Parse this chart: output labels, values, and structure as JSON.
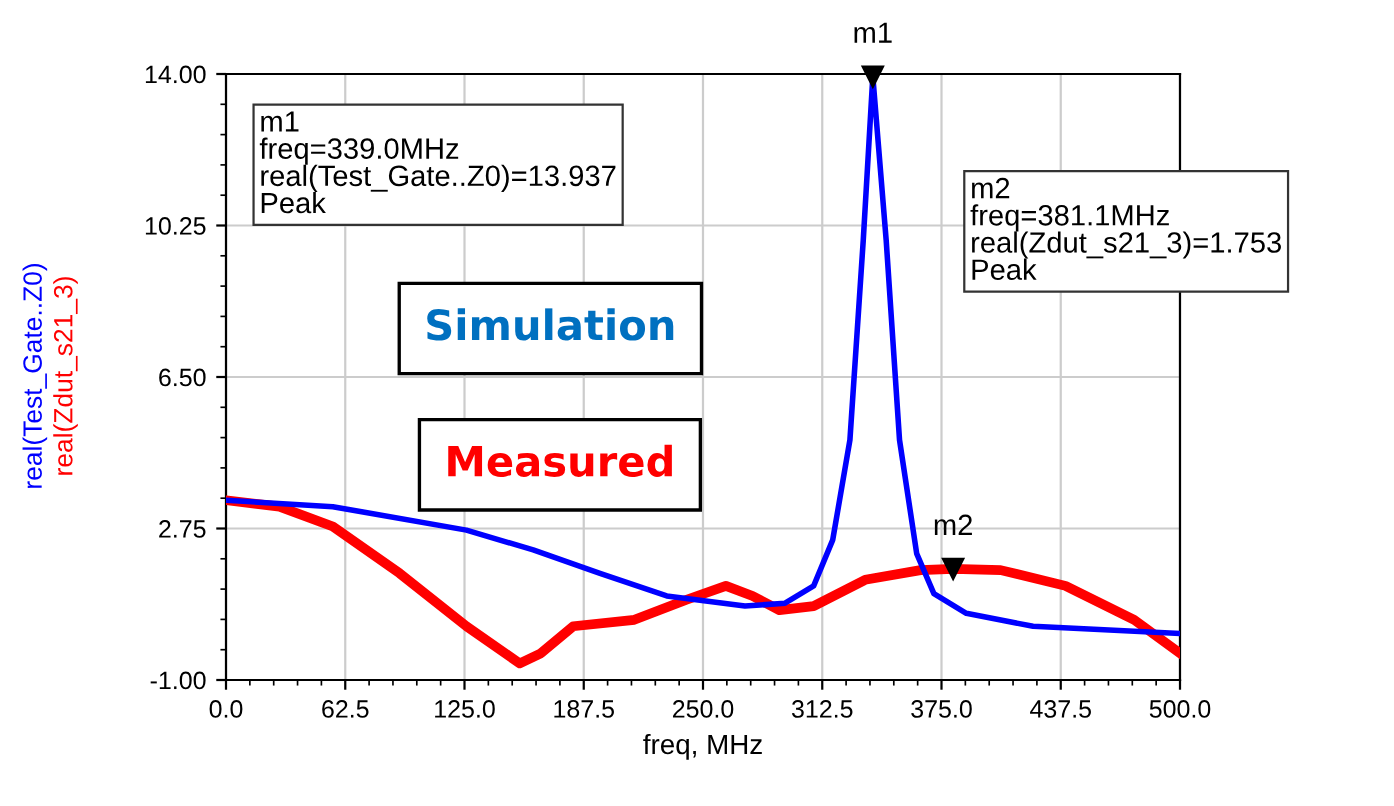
{
  "chart_data": {
    "type": "line",
    "xlabel": "freq, MHz",
    "ylabel": [
      "real(Test_Gate..Z0)",
      "real(Zdut_s21_3)"
    ],
    "xlim": [
      0,
      500
    ],
    "xticks": [
      {
        "value": 0,
        "label": "0.0"
      },
      {
        "value": 62.5,
        "label": "62.5"
      },
      {
        "value": 125,
        "label": "125.0"
      },
      {
        "value": 187.5,
        "label": "187.5"
      },
      {
        "value": 250,
        "label": "250.0"
      },
      {
        "value": 312.5,
        "label": "312.5"
      },
      {
        "value": 375,
        "label": "375.0"
      },
      {
        "value": 437.5,
        "label": "437.5"
      },
      {
        "value": 500,
        "label": "500.0"
      }
    ],
    "ylim": [
      -1,
      14
    ],
    "yticks": [
      {
        "value": -1,
        "label": "-1.00"
      },
      {
        "value": 2.75,
        "label": "2.75"
      },
      {
        "value": 6.5,
        "label": "6.50"
      },
      {
        "value": 10.25,
        "label": "10.25"
      },
      {
        "value": 14,
        "label": "14.00"
      }
    ],
    "grid": true,
    "legend": false,
    "marker": "none",
    "line_style": "solid",
    "series": [
      {
        "name": "Simulation",
        "color": "#0000ff",
        "x": [
          0,
          56,
          126,
          161,
          196,
          231,
          272,
          293,
          308,
          318,
          327,
          334,
          339,
          346,
          353,
          362,
          371,
          388,
          423,
          500
        ],
        "values": [
          3.45,
          3.29,
          2.71,
          2.22,
          1.64,
          1.08,
          0.83,
          0.9,
          1.33,
          2.47,
          4.94,
          9.89,
          13.937,
          9.89,
          4.94,
          2.13,
          1.14,
          0.65,
          0.33,
          0.15
        ]
      },
      {
        "name": "Measured",
        "color": "#ff0000",
        "x": [
          0,
          28,
          56,
          91,
          126,
          154,
          165,
          182,
          214,
          241,
          262,
          276,
          290,
          308,
          335,
          364,
          381.1,
          406,
          440,
          476,
          500
        ],
        "values": [
          3.45,
          3.29,
          2.8,
          1.64,
          0.33,
          -0.59,
          -0.34,
          0.33,
          0.49,
          0.98,
          1.33,
          1.08,
          0.73,
          0.83,
          1.48,
          1.72,
          1.753,
          1.72,
          1.33,
          0.49,
          -0.34
        ]
      }
    ],
    "annotations": [
      {
        "text": "m1",
        "x": 339,
        "y": 13.937
      },
      {
        "text": "m2",
        "x": 381.1,
        "y": 1.753
      },
      "m1\nfreq=339.0MHz\nreal(Test_Gate..Z0)=13.937\nPeak",
      "m2\nfreq=381.1MHz\nreal(Zdut_s21_3)=1.753\nPeak"
    ]
  }
}
